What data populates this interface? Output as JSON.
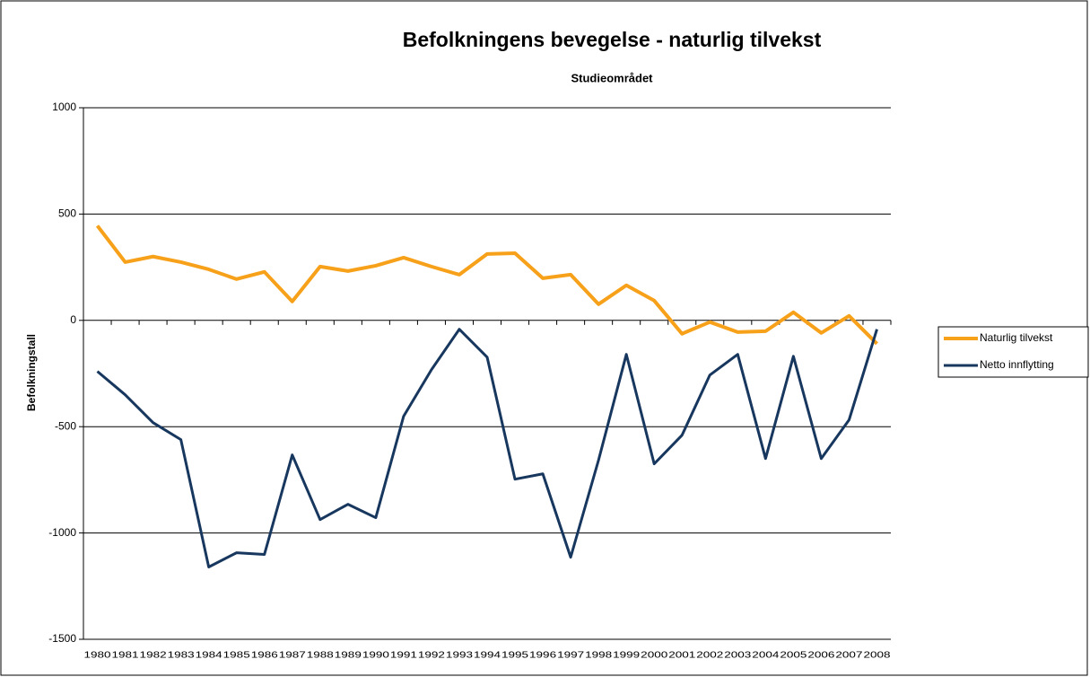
{
  "chart_data": {
    "type": "line",
    "title": "Befolkningens bevegelse - naturlig tilvekst",
    "subtitle": "Studieområdet",
    "y_label": "Befolkningstall",
    "categories": [
      "1980",
      "1981",
      "1982",
      "1983",
      "1984",
      "1985",
      "1986",
      "1987",
      "1988",
      "1989",
      "1990",
      "1991",
      "1992",
      "1993",
      "1994",
      "1995",
      "1996",
      "1997",
      "1998",
      "1999",
      "2000",
      "2001",
      "2002",
      "2003",
      "2004",
      "2005",
      "2006",
      "2007",
      "2008"
    ],
    "series": [
      {
        "name": "Naturlig tilvekst",
        "color": "#f7a11a",
        "values": [
          445,
          274,
          300,
          274,
          240,
          194,
          228,
          89,
          253,
          232,
          257,
          295,
          253,
          215,
          312,
          316,
          198,
          215,
          76,
          165,
          93,
          -63,
          -8,
          -55,
          -51,
          38,
          -59,
          21,
          -110
        ]
      },
      {
        "name": "Netto innflytting",
        "color": "#17375e",
        "values": [
          -240,
          -350,
          -481,
          -561,
          -1160,
          -1093,
          -1101,
          -633,
          -937,
          -865,
          -928,
          -451,
          -232,
          -42,
          -173,
          -747,
          -722,
          -1114,
          -658,
          -160,
          -675,
          -540,
          -257,
          -160,
          -650,
          -169,
          -650,
          -468,
          -42
        ]
      }
    ],
    "ylim": [
      -1500,
      1000
    ],
    "yticks": [
      -1500,
      -1000,
      -500,
      0,
      500,
      1000
    ],
    "grid": true,
    "legend": "right"
  }
}
